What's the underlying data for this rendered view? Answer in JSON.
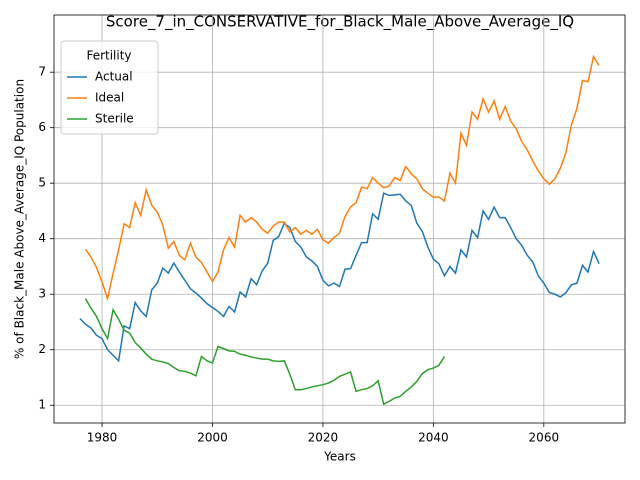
{
  "chart_data": {
    "type": "line",
    "title": "Score_7_in_CONSERVATIVE_for_Black_Male_Above_Average_IQ",
    "xlabel": "Years",
    "ylabel": "% of Black_Male Above_Average_IQ Population",
    "legend_title": "Fertility",
    "legend_loc": "upper left",
    "grid": true,
    "xlim": [
      1971.3,
      2074.7
    ],
    "ylim": [
      0.68,
      8.03
    ],
    "xticks": [
      1980,
      2000,
      2020,
      2040,
      2060
    ],
    "yticks": [
      1,
      2,
      3,
      4,
      5,
      6,
      7
    ],
    "x": [
      1976,
      1977,
      1978,
      1979,
      1980,
      1981,
      1982,
      1983,
      1984,
      1985,
      1986,
      1987,
      1988,
      1989,
      1990,
      1991,
      1992,
      1993,
      1994,
      1995,
      1996,
      1997,
      1998,
      1999,
      2000,
      2001,
      2002,
      2003,
      2004,
      2005,
      2006,
      2007,
      2008,
      2009,
      2010,
      2011,
      2012,
      2013,
      2014,
      2015,
      2016,
      2017,
      2018,
      2019,
      2020,
      2021,
      2022,
      2023,
      2024,
      2025,
      2026,
      2027,
      2028,
      2029,
      2030,
      2031,
      2032,
      2033,
      2034,
      2035,
      2036,
      2037,
      2038,
      2039,
      2040,
      2041,
      2042,
      2043,
      2044,
      2045,
      2046,
      2047,
      2048,
      2049,
      2050,
      2051,
      2052,
      2053,
      2054,
      2055,
      2056,
      2057,
      2058,
      2059,
      2060,
      2061,
      2062,
      2063,
      2064,
      2065,
      2066,
      2067,
      2068,
      2069,
      2070
    ],
    "series": [
      {
        "name": "Actual",
        "color": "#1f77b4",
        "values": [
          2.56,
          2.46,
          2.39,
          2.26,
          2.2,
          2.0,
          1.9,
          1.8,
          2.43,
          2.38,
          2.85,
          2.7,
          2.6,
          3.08,
          3.2,
          3.47,
          3.38,
          3.56,
          3.4,
          3.25,
          3.1,
          3.02,
          2.93,
          2.83,
          2.76,
          2.69,
          2.6,
          2.78,
          2.68,
          3.04,
          2.95,
          3.28,
          3.17,
          3.42,
          3.56,
          3.97,
          4.04,
          4.28,
          4.2,
          3.95,
          3.85,
          3.67,
          3.6,
          3.5,
          3.25,
          3.15,
          3.2,
          3.14,
          3.45,
          3.46,
          3.7,
          3.93,
          3.93,
          4.45,
          4.35,
          4.82,
          4.78,
          4.79,
          4.8,
          4.68,
          4.6,
          4.28,
          4.13,
          3.85,
          3.63,
          3.55,
          3.33,
          3.5,
          3.38,
          3.8,
          3.67,
          4.15,
          4.02,
          4.5,
          4.35,
          4.57,
          4.38,
          4.38,
          4.2,
          4.0,
          3.88,
          3.7,
          3.58,
          3.33,
          3.2,
          3.03,
          3.0,
          2.95,
          3.03,
          3.17,
          3.2,
          3.52,
          3.4,
          3.77,
          3.55
        ]
      },
      {
        "name": "Ideal",
        "color": "#ff7f0e",
        "values": [
          null,
          3.81,
          3.67,
          3.48,
          3.22,
          2.92,
          3.38,
          3.8,
          4.27,
          4.2,
          4.65,
          4.42,
          4.88,
          4.6,
          4.48,
          4.25,
          3.83,
          3.95,
          3.7,
          3.62,
          3.92,
          3.67,
          3.57,
          3.4,
          3.23,
          3.4,
          3.8,
          4.02,
          3.85,
          4.42,
          4.3,
          4.38,
          4.3,
          4.17,
          4.1,
          4.23,
          4.3,
          4.3,
          4.12,
          4.2,
          4.08,
          4.15,
          4.08,
          4.17,
          3.98,
          3.92,
          4.02,
          4.1,
          4.4,
          4.57,
          4.65,
          4.93,
          4.9,
          5.1,
          5.0,
          4.92,
          4.95,
          5.1,
          5.05,
          5.3,
          5.17,
          5.08,
          4.9,
          4.82,
          4.75,
          4.75,
          4.68,
          5.18,
          5.0,
          5.9,
          5.68,
          6.28,
          6.15,
          6.52,
          6.28,
          6.48,
          6.15,
          6.38,
          6.12,
          5.98,
          5.75,
          5.6,
          5.4,
          5.22,
          5.08,
          4.98,
          5.08,
          5.27,
          5.55,
          6.05,
          6.35,
          6.85,
          6.83,
          7.28,
          7.12
        ]
      },
      {
        "name": "Sterile",
        "color": "#2ca02c",
        "values": [
          null,
          2.92,
          2.75,
          2.6,
          2.38,
          2.2,
          2.72,
          2.55,
          2.35,
          2.3,
          2.13,
          2.03,
          1.92,
          1.83,
          1.8,
          1.78,
          1.75,
          1.68,
          1.62,
          1.61,
          1.58,
          1.53,
          1.88,
          1.8,
          1.76,
          2.06,
          2.02,
          1.98,
          1.97,
          1.92,
          1.9,
          1.87,
          1.85,
          1.83,
          1.83,
          1.8,
          1.79,
          1.8,
          1.56,
          1.28,
          1.28,
          1.3,
          1.33,
          1.35,
          1.37,
          1.4,
          1.45,
          1.52,
          1.56,
          1.6,
          1.25,
          1.28,
          1.3,
          1.35,
          1.44,
          1.02,
          1.07,
          1.13,
          1.16,
          1.25,
          1.33,
          1.43,
          1.57,
          1.64,
          1.67,
          1.72,
          1.88,
          null,
          null,
          null,
          null,
          null,
          null,
          null,
          null,
          null,
          null,
          null,
          null,
          null,
          null,
          null,
          null,
          null,
          null,
          null,
          null,
          null,
          null,
          null,
          null,
          null,
          null,
          null,
          null
        ]
      }
    ]
  }
}
